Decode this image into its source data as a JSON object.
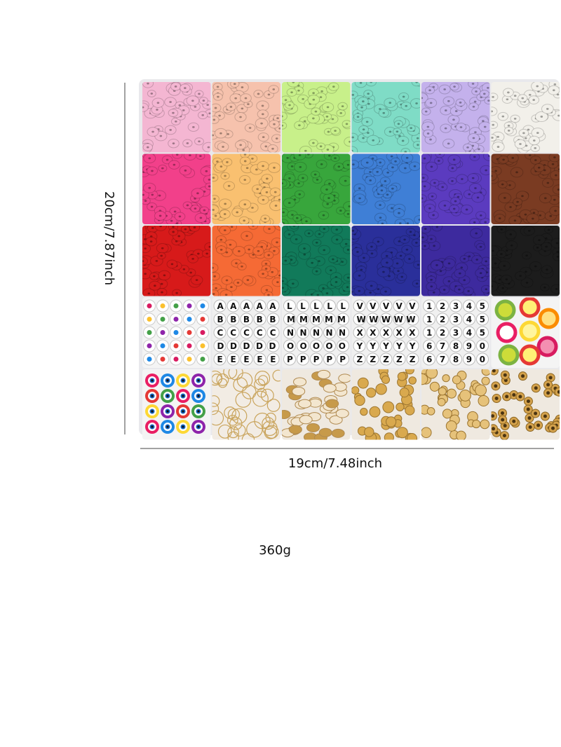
{
  "product_image": {
    "height_label": "20cm/7.87inch",
    "width_label": "19cm/7.48inch",
    "weight_label": "360g",
    "letter_beads": [
      [
        "AAAAA",
        "BBBBB",
        "CCCCC",
        "DDDDD",
        "EEEEE"
      ],
      [
        "LLLLL",
        "MMMMM",
        "NNNNN",
        "OOOOO",
        "PPPPP"
      ],
      [
        "VVVVV",
        "WWWWW",
        "XXXXX",
        "YYYYY",
        "ZZZZZ"
      ],
      [
        "12345",
        "12345",
        "12345",
        "67890",
        "67890"
      ]
    ]
  }
}
